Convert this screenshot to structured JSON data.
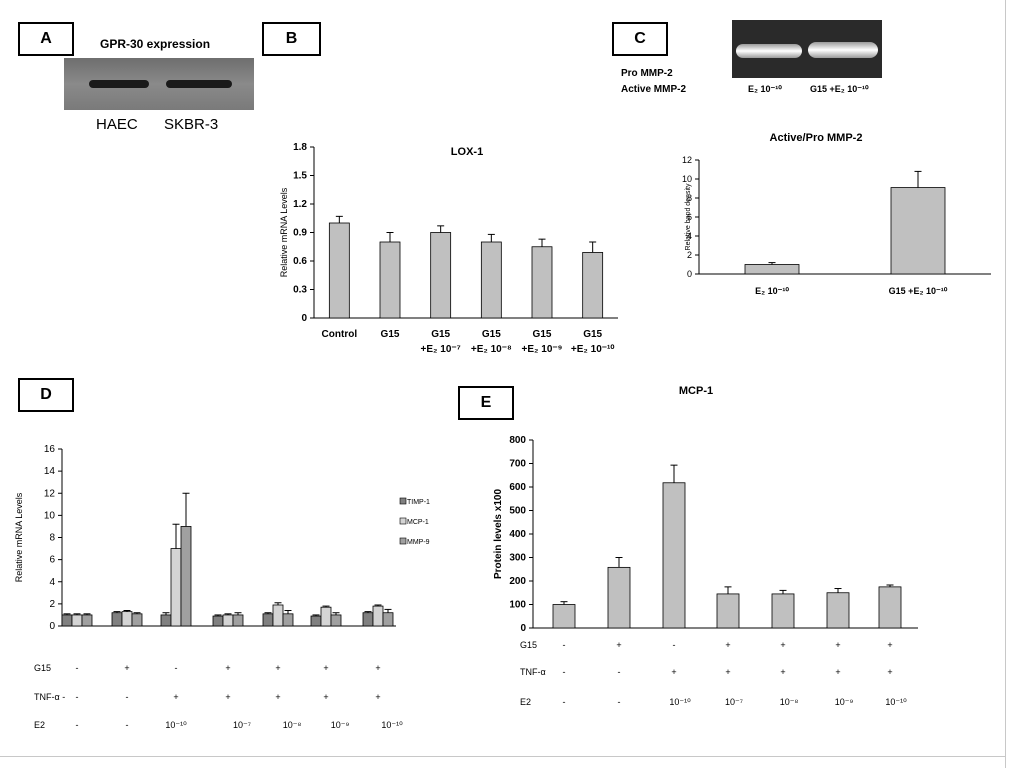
{
  "panels": {
    "a": "A",
    "b": "B",
    "c": "C",
    "d": "D",
    "e": "E"
  },
  "panel_a": {
    "title": "GPR-30 expression",
    "lanes": [
      "HAEC",
      "SKBR-3"
    ]
  },
  "panel_c": {
    "band_labels": [
      "Pro MMP-2",
      "Active MMP-2"
    ],
    "lane_labels": [
      "E₂ 10⁻¹⁰",
      "G15 +E₂ 10⁻¹⁰"
    ]
  },
  "chart_data": [
    {
      "id": "lox1",
      "type": "bar",
      "title": "LOX-1",
      "ylabel": "Relative mRNA Levels",
      "xlabel": "",
      "ylim": [
        0,
        1.8
      ],
      "yticks": [
        "0",
        "0.3",
        "0.6",
        "0.9",
        "1.2",
        "1.5",
        "1.8"
      ],
      "categories": [
        [
          "Control"
        ],
        [
          "G15"
        ],
        [
          "G15",
          "+E₂ 10⁻⁷"
        ],
        [
          "G15",
          "+E₂ 10⁻⁸"
        ],
        [
          "G15",
          "+E₂ 10⁻⁹"
        ],
        [
          "G15",
          "+E₂ 10⁻¹⁰"
        ]
      ],
      "values": [
        1.0,
        0.8,
        0.9,
        0.8,
        0.75,
        0.69
      ],
      "errors": [
        0.07,
        0.1,
        0.07,
        0.08,
        0.08,
        0.11
      ],
      "colors": {
        "bar": "#c0c0c0"
      }
    },
    {
      "id": "mmp2",
      "type": "bar",
      "title": "Active/Pro MMP-2",
      "ylabel": "Relative band density",
      "xlabel": "",
      "ylim": [
        0,
        12
      ],
      "yticks": [
        "0",
        "2",
        "4",
        "6",
        "8",
        "10",
        "12"
      ],
      "categories": [
        [
          "E₂ 10⁻¹⁰"
        ],
        [
          "G15 +E₂ 10⁻¹⁰"
        ]
      ],
      "values": [
        1.0,
        9.1
      ],
      "errors": [
        0.2,
        1.7
      ],
      "colors": {
        "bar": "#c0c0c0"
      }
    },
    {
      "id": "mrna",
      "type": "bar",
      "title": "",
      "ylabel": "Relative mRNA Levels",
      "xlabel": "",
      "ylim": [
        0,
        16
      ],
      "yticks": [
        "0",
        "2",
        "4",
        "6",
        "8",
        "10",
        "12",
        "14",
        "16"
      ],
      "groups": 7,
      "series": [
        {
          "name": "TIMP-1",
          "values": [
            1.0,
            1.2,
            1.0,
            0.9,
            1.1,
            0.9,
            1.2
          ],
          "errors": [
            0.1,
            0.1,
            0.2,
            0.1,
            0.1,
            0.1,
            0.1
          ],
          "color": "#808080"
        },
        {
          "name": "MCP-1",
          "values": [
            1.0,
            1.3,
            7.0,
            1.0,
            1.9,
            1.7,
            1.8
          ],
          "errors": [
            0.1,
            0.1,
            2.2,
            0.1,
            0.2,
            0.1,
            0.1
          ],
          "color": "#d4d4d4"
        },
        {
          "name": "MMP-9",
          "values": [
            1.0,
            1.1,
            9.0,
            1.0,
            1.1,
            1.0,
            1.2
          ],
          "errors": [
            0.1,
            0.1,
            3.0,
            0.2,
            0.3,
            0.2,
            0.3
          ],
          "color": "#a0a0a0"
        }
      ],
      "conditions": {
        "G15": [
          "-",
          "+",
          "-",
          "+",
          "+",
          "+",
          "+"
        ],
        "TNF-α": [
          "-",
          "-",
          "+",
          "+",
          "+",
          "+",
          "+"
        ],
        "E2": [
          "-",
          "-",
          "10⁻¹⁰",
          "10⁻⁷",
          "10⁻⁸",
          "10⁻⁹",
          "10⁻¹⁰"
        ]
      },
      "condition_labels": [
        "G15",
        "TNF-α -",
        "E2"
      ]
    },
    {
      "id": "mcp1",
      "type": "bar",
      "title": "MCP-1",
      "ylabel": "Protein levels x100",
      "xlabel": "",
      "ylim": [
        0,
        800
      ],
      "yticks": [
        "0",
        "100",
        "200",
        "300",
        "400",
        "500",
        "600",
        "700",
        "800"
      ],
      "values": [
        100,
        258,
        618,
        145,
        145,
        150,
        175
      ],
      "errors": [
        12,
        42,
        75,
        30,
        15,
        18,
        8
      ],
      "colors": {
        "bar": "#c0c0c0"
      },
      "conditions": {
        "G15": [
          "-",
          "+",
          "-",
          "+",
          "+",
          "+",
          "+"
        ],
        "TNF-α": [
          "-",
          "-",
          "+",
          "+",
          "+",
          "+",
          "+"
        ],
        "E2": [
          "-",
          "-",
          "10⁻¹⁰",
          "10⁻⁷",
          "10⁻⁸",
          "10⁻⁹",
          "10⁻¹⁰"
        ]
      },
      "condition_labels": [
        "G15",
        "TNF-α",
        "E2"
      ]
    }
  ]
}
